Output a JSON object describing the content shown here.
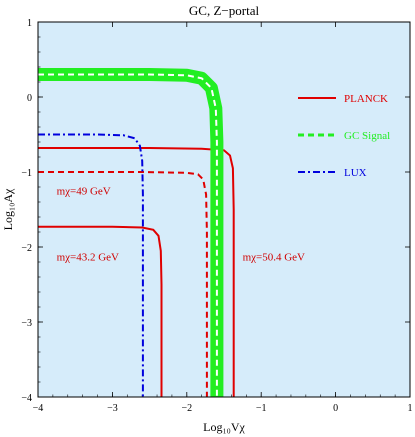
{
  "chart_data": {
    "type": "line",
    "title": "GC, Z−portal",
    "xlabel": "Log₁₀Vχ",
    "ylabel": "Log₁₀Aχ",
    "xlim": [
      -4,
      1
    ],
    "ylim": [
      -4,
      1
    ],
    "xticks": [
      -4,
      -3,
      -2,
      -1,
      0,
      1
    ],
    "yticks": [
      -4,
      -3,
      -2,
      -1,
      0,
      1
    ],
    "xtick_labels": [
      "−4",
      "−3",
      "−2",
      "−1",
      "0",
      "1"
    ],
    "ytick_labels": [
      "−4",
      "−3",
      "−2",
      "−1",
      "0",
      "1"
    ],
    "shaded_region_color": "#d6ecfa",
    "legend_position": "right",
    "legend": [
      {
        "name": "PLANCK",
        "color": "#e00000",
        "style": "solid"
      },
      {
        "name": "GC Signal",
        "color": "#22ee22",
        "style": "dashed"
      },
      {
        "name": "LUX",
        "color": "#0000dd",
        "style": "dashdot"
      }
    ],
    "series": [
      {
        "name": "PLANCK",
        "mass": "mχ=50.4 GeV",
        "color": "#e00000",
        "style": "solid",
        "x": [
          -4,
          -2.5,
          -1.8,
          -1.5,
          -1.42,
          -1.38,
          -1.37,
          -1.37
        ],
        "y": [
          -0.68,
          -0.68,
          -0.69,
          -0.71,
          -0.78,
          -0.95,
          -1.5,
          -4
        ]
      },
      {
        "name": "PLANCK",
        "mass": "mχ=49 GeV",
        "color": "#e00000",
        "style": "dashed",
        "x": [
          -4,
          -2.6,
          -2.0,
          -1.85,
          -1.78,
          -1.74,
          -1.73,
          -1.73
        ],
        "y": [
          -1.0,
          -1.0,
          -1.01,
          -1.03,
          -1.1,
          -1.3,
          -1.8,
          -4
        ]
      },
      {
        "name": "PLANCK",
        "mass": "mχ=43.2 GeV",
        "color": "#e00000",
        "style": "solid",
        "x": [
          -4,
          -3.0,
          -2.6,
          -2.45,
          -2.38,
          -2.35,
          -2.34,
          -2.34
        ],
        "y": [
          -1.73,
          -1.73,
          -1.74,
          -1.77,
          -1.85,
          -2.05,
          -2.5,
          -4
        ]
      },
      {
        "name": "GC Signal",
        "color": "#22ee22",
        "style": "dashed",
        "x": [
          -4,
          -2.5,
          -2.0,
          -1.8,
          -1.67,
          -1.61,
          -1.595,
          -1.595
        ],
        "y": [
          0.3,
          0.3,
          0.29,
          0.25,
          0.12,
          -0.15,
          -0.6,
          -4
        ]
      },
      {
        "name": "LUX",
        "color": "#0000dd",
        "style": "dashdot",
        "x": [
          -4,
          -3.2,
          -2.85,
          -2.7,
          -2.63,
          -2.6,
          -2.59,
          -2.59
        ],
        "y": [
          -0.5,
          -0.5,
          -0.51,
          -0.55,
          -0.65,
          -0.85,
          -1.3,
          -4
        ]
      }
    ],
    "annotations": [
      {
        "text": "mχ=49 GeV",
        "x": -3.75,
        "y": -1.3
      },
      {
        "text": "mχ=43.2 GeV",
        "x": -3.75,
        "y": -2.18
      },
      {
        "text": "mχ=50.4 GeV",
        "x": -1.25,
        "y": -2.18
      }
    ]
  }
}
